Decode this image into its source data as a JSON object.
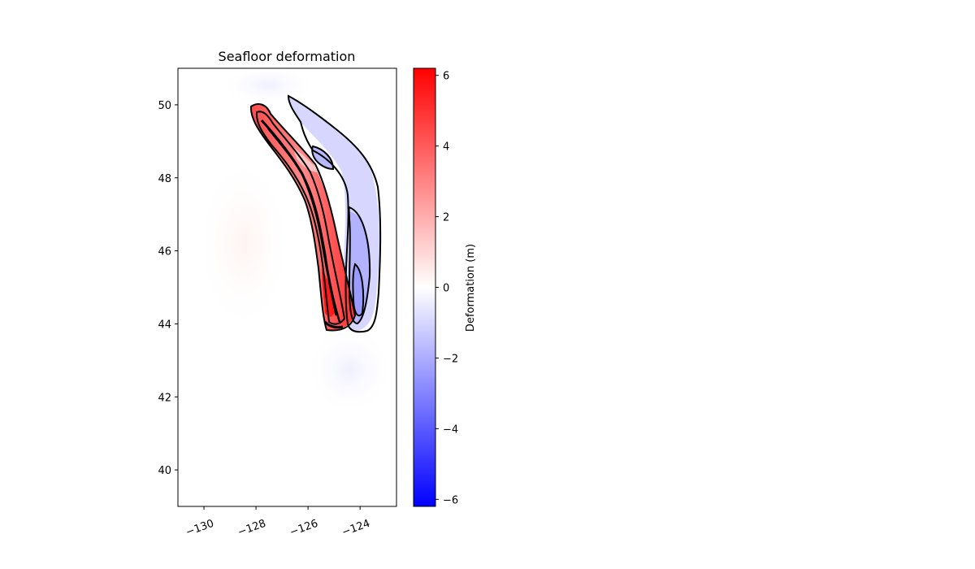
{
  "chart_data": {
    "type": "heatmap",
    "title": "Seafloor deformation",
    "xlabel": "",
    "ylabel": "",
    "x_ticks": [
      -130,
      -128,
      -126,
      -124
    ],
    "x_tick_labels": [
      "−130",
      "−128",
      "−126",
      "−124"
    ],
    "y_ticks": [
      40,
      42,
      44,
      46,
      48,
      50
    ],
    "y_tick_labels": [
      "40",
      "42",
      "44",
      "46",
      "48",
      "50"
    ],
    "xlim": [
      -131,
      -122.6
    ],
    "ylim": [
      39,
      51
    ],
    "colorbar": {
      "label": "Deformation (m)",
      "colormap": "bwr",
      "range": [
        -6.2,
        6.2
      ],
      "ticks": [
        -6,
        -4,
        -2,
        0,
        2,
        4,
        6
      ],
      "tick_labels": [
        "−6",
        "−4",
        "−2",
        "0",
        "2",
        "4",
        "6"
      ],
      "colors": {
        "min": "#0000ff",
        "mid": "#ffffff",
        "max": "#ff0000"
      }
    },
    "uplift_zone": {
      "description_values": "positive deformation strip along fault",
      "centerline": [
        [
          -128.0,
          49.9
        ],
        [
          -127.3,
          49.0
        ],
        [
          -126.6,
          48.1
        ],
        [
          -126.1,
          47.0
        ],
        [
          -125.6,
          45.9
        ],
        [
          -125.2,
          44.8
        ],
        [
          -125.0,
          43.9
        ]
      ],
      "peak_m": 6.2
    },
    "subsidence_zone": {
      "centerline": [
        [
          -126.4,
          50.2
        ],
        [
          -125.2,
          49.2
        ],
        [
          -124.3,
          48.0
        ],
        [
          -124.0,
          46.5
        ],
        [
          -123.9,
          45.0
        ],
        [
          -124.0,
          43.9
        ]
      ],
      "min_m": -3.0
    },
    "contour_color": "#000000"
  }
}
